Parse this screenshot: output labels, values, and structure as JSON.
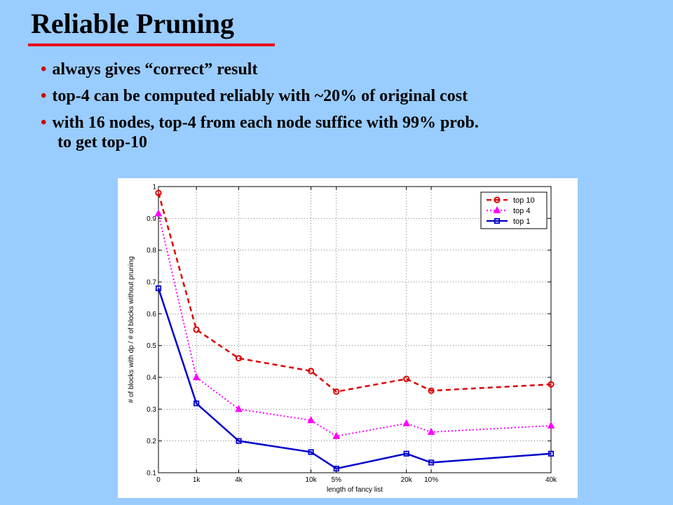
{
  "slide": {
    "title": "Reliable Pruning",
    "bullets": [
      {
        "text": "always gives “correct” result"
      },
      {
        "text": "top-4 can be computed reliably with ~20% of original cost"
      },
      {
        "text": "with 16 nodes, top-4 from each node suffice with 99% prob.",
        "continuation": "to get top-10"
      }
    ]
  },
  "colors": {
    "background": "#99ccff",
    "title_underline": "#e8001c",
    "bullet_dot": "#cc0000"
  },
  "chart_data": {
    "type": "line",
    "title": "",
    "xlabel": "length of fancy list",
    "ylabel": "# of blocks with dp / # of blocks without pruning",
    "categories": [
      "0",
      "1k",
      "4k",
      "10k",
      "5%",
      "20k",
      "10%",
      "40k"
    ],
    "ylim": [
      0.1,
      1
    ],
    "yticks": [
      "0.1",
      "0.2",
      "0.3",
      "0.4",
      "0.5",
      "0.6",
      "0.7",
      "0.8",
      "0.9",
      "1"
    ],
    "grid": true,
    "legend_position": "top-right",
    "series": [
      {
        "name": "top 10",
        "color": "#dd0000",
        "dash": "dashed",
        "marker": "circle",
        "values": [
          0.98,
          0.55,
          0.46,
          0.42,
          0.355,
          0.395,
          0.358,
          0.378
        ]
      },
      {
        "name": "top 4",
        "color": "#ff00ff",
        "dash": "dotted",
        "marker": "triangle",
        "values": [
          0.915,
          0.4,
          0.3,
          0.265,
          0.215,
          0.255,
          0.228,
          0.248
        ]
      },
      {
        "name": "top 1",
        "color": "#0000cc",
        "dash": "solid",
        "marker": "square",
        "values": [
          0.68,
          0.318,
          0.2,
          0.165,
          0.113,
          0.16,
          0.132,
          0.16
        ]
      }
    ]
  }
}
